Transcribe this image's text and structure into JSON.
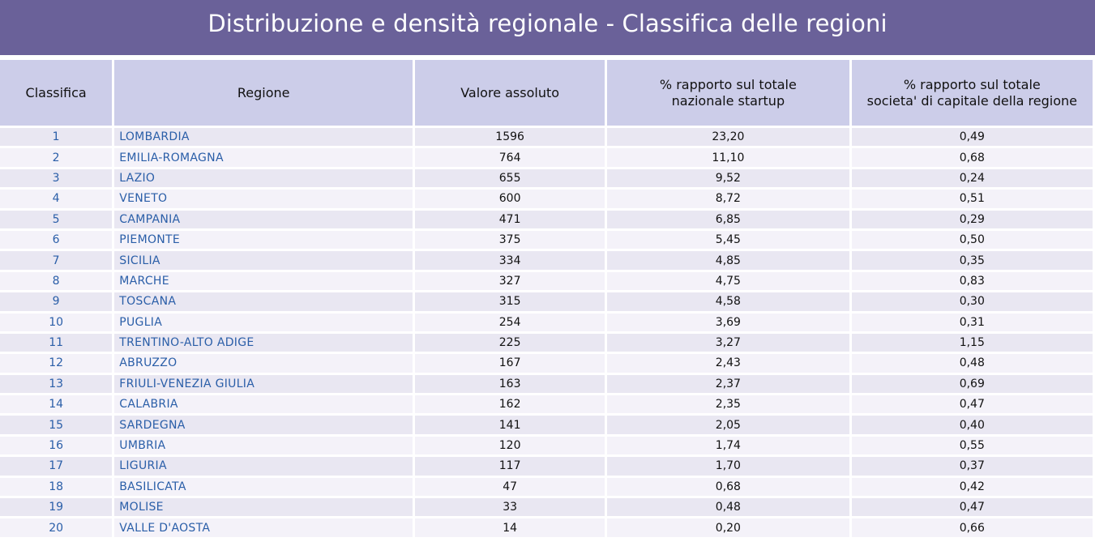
{
  "title": "Distribuzione e densità regionale - Classifica delle regioni",
  "columns": [
    "Classifica",
    "Regione",
    "Valore assoluto",
    "% rapporto sul totale nazionale startup",
    "% rapporto sul totale societa' di capitale della regione"
  ],
  "columns_lines": {
    "c4_line1": "% rapporto sul totale",
    "c4_line2": "nazionale startup",
    "c5_line1": "% rapporto sul totale",
    "c5_line2": "societa' di capitale della regione"
  },
  "rows": [
    {
      "rank": "1",
      "region": "LOMBARDIA",
      "value": "1596",
      "pct_national": "23,20",
      "pct_region": "0,49"
    },
    {
      "rank": "2",
      "region": "EMILIA-ROMAGNA",
      "value": "764",
      "pct_national": "11,10",
      "pct_region": "0,68"
    },
    {
      "rank": "3",
      "region": "LAZIO",
      "value": "655",
      "pct_national": "9,52",
      "pct_region": "0,24"
    },
    {
      "rank": "4",
      "region": "VENETO",
      "value": "600",
      "pct_national": "8,72",
      "pct_region": "0,51"
    },
    {
      "rank": "5",
      "region": "CAMPANIA",
      "value": "471",
      "pct_national": "6,85",
      "pct_region": "0,29"
    },
    {
      "rank": "6",
      "region": "PIEMONTE",
      "value": "375",
      "pct_national": "5,45",
      "pct_region": "0,50"
    },
    {
      "rank": "7",
      "region": "SICILIA",
      "value": "334",
      "pct_national": "4,85",
      "pct_region": "0,35"
    },
    {
      "rank": "8",
      "region": "MARCHE",
      "value": "327",
      "pct_national": "4,75",
      "pct_region": "0,83"
    },
    {
      "rank": "9",
      "region": "TOSCANA",
      "value": "315",
      "pct_national": "4,58",
      "pct_region": "0,30"
    },
    {
      "rank": "10",
      "region": "PUGLIA",
      "value": "254",
      "pct_national": "3,69",
      "pct_region": "0,31"
    },
    {
      "rank": "11",
      "region": "TRENTINO-ALTO ADIGE",
      "value": "225",
      "pct_national": "3,27",
      "pct_region": "1,15"
    },
    {
      "rank": "12",
      "region": "ABRUZZO",
      "value": "167",
      "pct_national": "2,43",
      "pct_region": "0,48"
    },
    {
      "rank": "13",
      "region": "FRIULI-VENEZIA GIULIA",
      "value": "163",
      "pct_national": "2,37",
      "pct_region": "0,69"
    },
    {
      "rank": "14",
      "region": "CALABRIA",
      "value": "162",
      "pct_national": "2,35",
      "pct_region": "0,47"
    },
    {
      "rank": "15",
      "region": "SARDEGNA",
      "value": "141",
      "pct_national": "2,05",
      "pct_region": "0,40"
    },
    {
      "rank": "16",
      "region": "UMBRIA",
      "value": "120",
      "pct_national": "1,74",
      "pct_region": "0,55"
    },
    {
      "rank": "17",
      "region": "LIGURIA",
      "value": "117",
      "pct_national": "1,70",
      "pct_region": "0,37"
    },
    {
      "rank": "18",
      "region": "BASILICATA",
      "value": "47",
      "pct_national": "0,68",
      "pct_region": "0,42"
    },
    {
      "rank": "19",
      "region": "MOLISE",
      "value": "33",
      "pct_national": "0,48",
      "pct_region": "0,47"
    },
    {
      "rank": "20",
      "region": "VALLE D'AOSTA",
      "value": "14",
      "pct_national": "0,20",
      "pct_region": "0,66"
    }
  ],
  "colors": {
    "title_bg": "#6a6199",
    "header_bg": "#cccde9",
    "row_odd": "#e9e7f2",
    "row_even": "#f4f2f9",
    "link_text": "#2a5ea8"
  }
}
